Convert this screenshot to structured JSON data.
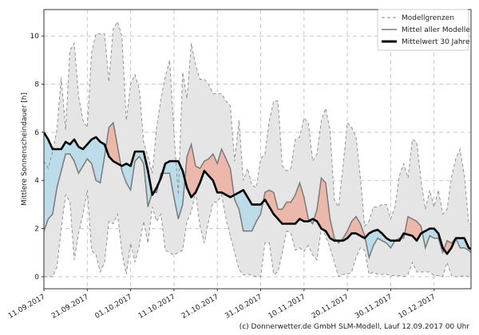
{
  "chart_data": {
    "type": "area",
    "title": "",
    "xlabel": "",
    "ylabel": "Mittlere Sonnenscheindauer [h]",
    "ylim": [
      -0.5,
      11.1
    ],
    "yticks": [
      0,
      2,
      4,
      6,
      8,
      10
    ],
    "xticks": [
      "11.09.2017",
      "21.09.2017",
      "01.10.2017",
      "11.10.2017",
      "21.10.2017",
      "31.10.2017",
      "10.11.2017",
      "20.11.2017",
      "30.11.2017",
      "10.12.2017"
    ],
    "grid": true,
    "legend_position": "top-right",
    "x_start": "2017-09-11",
    "x_end": "2017-12-19",
    "series": [
      {
        "name": "Modellgrenzen",
        "role": "upper",
        "values": [
          4.8,
          4.5,
          5.2,
          6.1,
          8.3,
          6.1,
          9.4,
          9.7,
          7.5,
          6.5,
          6.2,
          9.3,
          10.1,
          10.1,
          10.1,
          8.1,
          10.3,
          10.6,
          10.0,
          6.5,
          8.0,
          8.4,
          7.8,
          5.6,
          5.0,
          4.3,
          6.2,
          7.4,
          8.3,
          9.0,
          6.0,
          3.4,
          8.5,
          7.4,
          9.7,
          8.8,
          8.2,
          8.2,
          8.0,
          7.6,
          7.6,
          7.6,
          7.3,
          7.1,
          4.8,
          6.5,
          4.0,
          4.5,
          3.8,
          3.7,
          4.9,
          5.1,
          6.5,
          7.3,
          7.3,
          4.6,
          4.4,
          4.5,
          5.7,
          5.8,
          6.6,
          6.4,
          4.8,
          5.1,
          6.5,
          7.0,
          6.1,
          3.2,
          2.9,
          4.6,
          6.4,
          6.2,
          5.8,
          4.1,
          2.1,
          2.3,
          2.9,
          2.9,
          3.0,
          3.0,
          2.4,
          2.9,
          4.2,
          4.7,
          4.1,
          5.7,
          5.6,
          4.0,
          2.8,
          3.6,
          2.9,
          3.6,
          2.6,
          2.8,
          4.1,
          4.9,
          5.3,
          4.2,
          2.2,
          2.2
        ]
      },
      {
        "name": "Modellgrenzen",
        "role": "lower",
        "values": [
          0,
          0,
          0,
          0.4,
          2.0,
          3.4,
          3.1,
          0.7,
          1.8,
          2.6,
          3.6,
          1.1,
          0.9,
          0.2,
          0.6,
          2.3,
          2.2,
          2.6,
          1.0,
          0.1,
          1.4,
          0.6,
          1.3,
          2.3,
          1.4,
          2.9,
          2.3,
          2.6,
          1.1,
          1.0,
          0.9,
          1.0,
          1.1,
          2.3,
          2.7,
          3.5,
          2.1,
          1.4,
          2.3,
          3.1,
          3.1,
          3.4,
          2.4,
          1.7,
          1.0,
          0.3,
          0.07,
          0.1,
          0.05,
          0,
          0,
          1.4,
          1.4,
          0.1,
          0.2,
          1.0,
          1.9,
          1.8,
          1.1,
          1.2,
          1.05,
          1.3,
          0.9,
          0.7,
          2.0,
          1.7,
          1.2,
          0.6,
          0,
          0.1,
          0.1,
          0.2,
          0.8,
          1.2,
          1.1,
          0.1,
          0.2,
          0.1,
          0.1,
          0.1,
          0.05,
          0.05,
          0.05,
          0,
          0.1,
          0.6,
          0.2,
          0.2,
          0.2,
          0.2,
          0.05,
          0.05,
          0,
          0.6,
          0.05,
          0,
          0,
          0.05,
          0,
          0
        ]
      },
      {
        "name": "Mittel aller Modelle",
        "role": "model-mean",
        "values": [
          1.9,
          2.4,
          2.6,
          3.7,
          4.4,
          5.1,
          5.1,
          4.8,
          4.3,
          4.6,
          4.9,
          4.7,
          4.0,
          3.9,
          5.0,
          6.2,
          6.4,
          5.4,
          4.4,
          3.9,
          3.6,
          4.8,
          5.0,
          4.7,
          2.9,
          3.5,
          3.5,
          4.3,
          4.3,
          4.3,
          3.3,
          2.4,
          3.0,
          5.0,
          5.5,
          4.6,
          4.5,
          4.8,
          4.9,
          5.1,
          4.7,
          5.3,
          4.9,
          4.5,
          3.2,
          2.8,
          1.9,
          1.9,
          1.9,
          2.3,
          2.6,
          3.5,
          3.6,
          3.5,
          2.8,
          2.8,
          3.1,
          3.1,
          3.4,
          3.9,
          3.3,
          2.4,
          2.2,
          2.8,
          4.1,
          3.9,
          2.4,
          1.6,
          1.4,
          1.6,
          1.9,
          2.3,
          2.5,
          2.2,
          1.7,
          0.8,
          1.3,
          1.6,
          1.5,
          1.4,
          1.2,
          1.5,
          1.6,
          1.6,
          2.5,
          2.4,
          2.3,
          2.1,
          1.2,
          1.7,
          1.6,
          1.6,
          1.0,
          1.5,
          1.4,
          1.6,
          1.2,
          1.2,
          1.1,
          0.9
        ]
      },
      {
        "name": "Mittelwert 30 Jahre",
        "role": "climate-mean",
        "values": [
          6.0,
          5.7,
          5.3,
          5.3,
          5.3,
          5.6,
          5.5,
          5.7,
          5.4,
          5.3,
          5.5,
          5.7,
          5.8,
          5.6,
          5.5,
          5.0,
          4.8,
          4.7,
          4.6,
          4.7,
          4.6,
          5.2,
          5.2,
          5.2,
          4.4,
          3.4,
          3.7,
          4.1,
          4.7,
          4.8,
          4.8,
          4.8,
          4.4,
          3.7,
          3.3,
          3.5,
          3.9,
          4.4,
          4.2,
          4.0,
          3.5,
          3.5,
          3.4,
          3.3,
          3.4,
          3.5,
          3.6,
          3.3,
          3.0,
          3.0,
          3.0,
          3.2,
          2.9,
          2.6,
          2.4,
          2.2,
          2.2,
          2.2,
          2.2,
          2.4,
          2.3,
          2.3,
          2.4,
          2.3,
          2.0,
          1.9,
          1.6,
          1.5,
          1.5,
          1.5,
          1.6,
          1.8,
          1.8,
          1.7,
          1.6,
          1.8,
          1.9,
          1.95,
          1.8,
          1.6,
          1.5,
          1.5,
          1.5,
          1.8,
          1.75,
          1.7,
          1.5,
          1.8,
          1.9,
          2.0,
          2.0,
          1.8,
          1.2,
          0.95,
          1.2,
          1.6,
          1.6,
          1.6,
          1.2,
          1.1
        ]
      }
    ],
    "colors": {
      "range_fill": "#e5e5e5",
      "range_line": "#8a8a8a",
      "above_climate": "#ebb8ab",
      "below_climate": "#bddcea",
      "model_mean": "#7a7a7a",
      "climate_mean": "#000000"
    },
    "legend": [
      "Modellgrenzen",
      "Mittel aller Modelle",
      "Mittelwert 30 Jahre"
    ]
  },
  "footer": "(c) Donnerwetter.de GmbH SLM-Modell, Lauf 12.09.2017 00 Uhr"
}
